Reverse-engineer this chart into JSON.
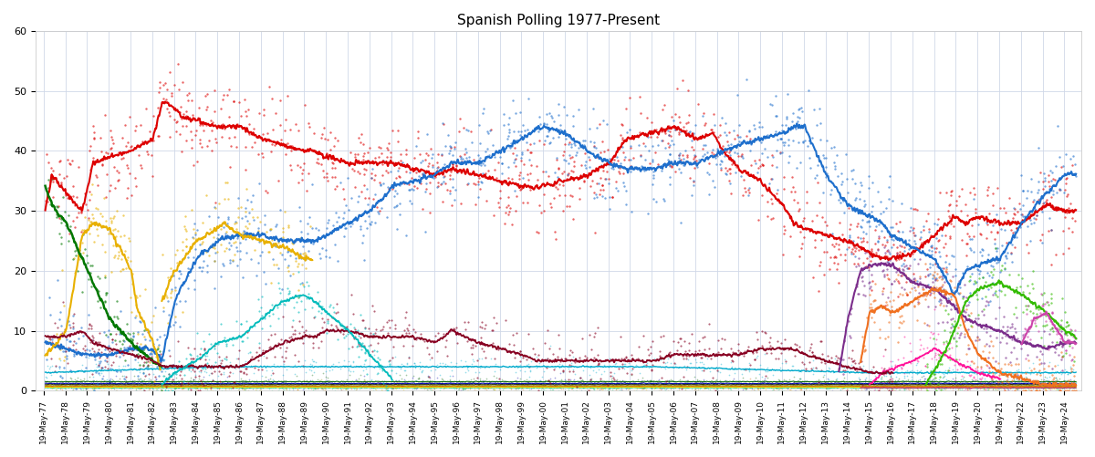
{
  "title": "Spanish Polling 1977-Present",
  "title_fontsize": 11,
  "ylim": [
    0,
    60
  ],
  "yticks": [
    0,
    10,
    20,
    30,
    40,
    50,
    60
  ],
  "background_color": "#ffffff",
  "grid_color": "#d0d8e8",
  "xtick_dates": [
    "1977-05-19",
    "1978-05-19",
    "1979-05-19",
    "1980-05-19",
    "1981-05-19",
    "1982-05-19",
    "1983-05-19",
    "1984-05-19",
    "1985-05-19",
    "1986-05-19",
    "1987-05-19",
    "1988-05-19",
    "1989-05-19",
    "1990-05-19",
    "1991-05-19",
    "1992-05-19",
    "1993-05-19",
    "1994-05-19",
    "1995-05-19",
    "1996-05-19",
    "1997-05-19",
    "1998-05-19",
    "1999-05-19",
    "2000-05-19",
    "2001-05-19",
    "2002-05-19",
    "2003-05-19",
    "2004-05-19",
    "2005-05-19",
    "2006-05-19",
    "2007-05-19",
    "2008-05-19",
    "2009-05-19",
    "2010-05-19",
    "2011-05-19",
    "2012-05-19",
    "2013-05-19",
    "2014-05-19",
    "2015-05-19",
    "2016-05-19",
    "2017-05-19",
    "2018-05-19",
    "2019-05-19",
    "2020-05-19",
    "2021-05-19",
    "2022-05-19",
    "2023-05-19",
    "2024-05-19"
  ],
  "xtick_labels": [
    "19-May-77",
    "19-May-78",
    "19-May-79",
    "19-May-80",
    "19-May-81",
    "19-May-82",
    "19-May-83",
    "19-May-84",
    "19-May-85",
    "19-May-86",
    "19-May-87",
    "19-May-88",
    "19-May-89",
    "19-May-90",
    "19-May-91",
    "19-May-92",
    "19-May-93",
    "19-May-94",
    "19-May-95",
    "19-May-96",
    "19-May-97",
    "19-May-98",
    "19-May-99",
    "19-May-00",
    "19-May-01",
    "19-May-02",
    "19-May-03",
    "19-May-04",
    "19-May-05",
    "19-May-06",
    "19-May-07",
    "19-May-08",
    "19-May-09",
    "19-May-10",
    "19-May-11",
    "19-May-12",
    "19-May-13",
    "19-May-14",
    "19-May-15",
    "19-May-16",
    "19-May-17",
    "19-May-18",
    "19-May-19",
    "19-May-20",
    "19-May-21",
    "19-May-22",
    "19-May-23",
    "19-May-24"
  ]
}
